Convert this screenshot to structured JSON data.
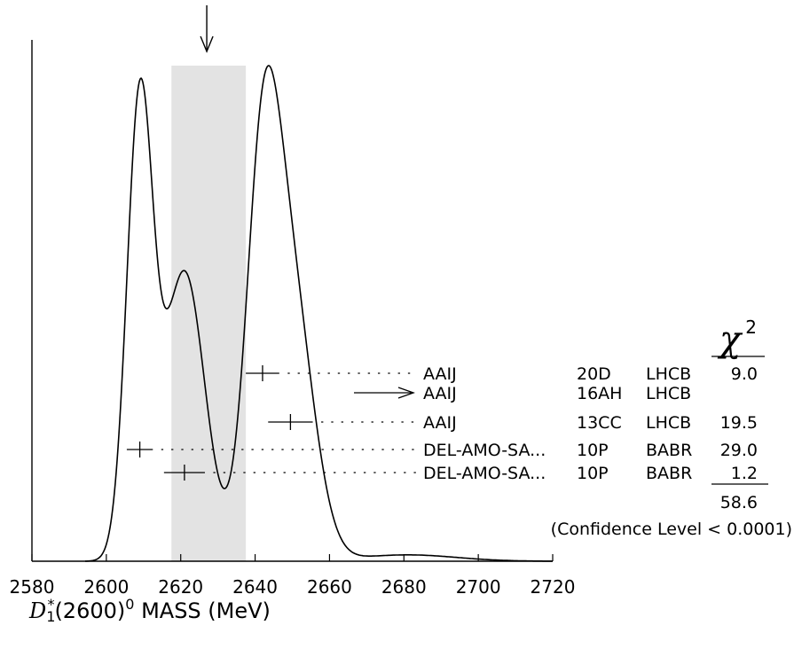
{
  "chart_data": {
    "type": "ideogram",
    "title": "(above the ideogram, partially visible)",
    "xlabel": {
      "symbol": "D",
      "subscript": "1",
      "star": "*",
      "state": "(2600)",
      "superscript": "0",
      "suffix": " MASS (MeV)"
    },
    "xlim": [
      2580,
      2720
    ],
    "xticks": [
      2580,
      2600,
      2620,
      2640,
      2660,
      2680,
      2700,
      2720
    ],
    "average_band": {
      "low": 2617.5,
      "high": 2637.5
    },
    "average_arrow_x": 2627,
    "chi2_symbol": "χ",
    "chi2_exponent": "2",
    "measurements": [
      {
        "author": "AAIJ",
        "year": "20D",
        "tecn": "LHCB",
        "value": 2642,
        "error": 4.5,
        "chi2": "9.0",
        "used": true
      },
      {
        "author": "AAIJ",
        "year": "16AH",
        "tecn": "LHCB",
        "value": null,
        "error": null,
        "chi2": "",
        "used": false
      },
      {
        "author": "AAIJ",
        "year": "13CC",
        "tecn": "LHCB",
        "value": 2649.5,
        "error": 6,
        "chi2": "19.5",
        "used": true
      },
      {
        "author": "DEL-AMO-SA...",
        "year": "10P",
        "tecn": "BABR",
        "value": 2609,
        "error": 3.5,
        "chi2": "29.0",
        "used": true
      },
      {
        "author": "DEL-AMO-SA...",
        "year": "10P",
        "tecn": "BABR",
        "value": 2621,
        "error": 5.5,
        "chi2": "1.2",
        "used": true
      }
    ],
    "chi2_total": "58.6",
    "confidence_level": "(Confidence Level < 0.0001)"
  }
}
